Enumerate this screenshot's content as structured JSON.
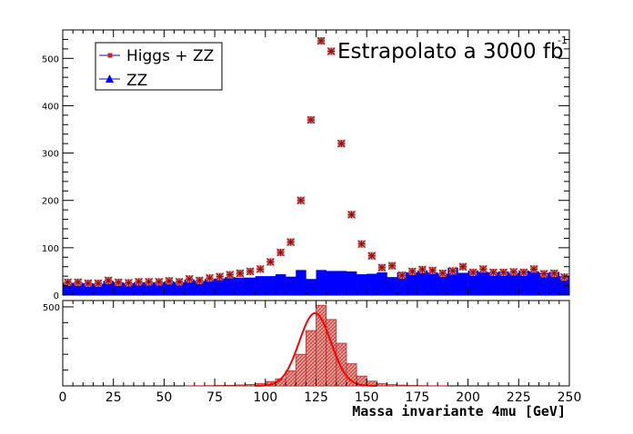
{
  "chart_data": [
    {
      "type": "bar",
      "panel": "top",
      "title": "",
      "annotation": {
        "text": "Estrapolato a 3000 fb",
        "superscript": "-1"
      },
      "xlabel": "",
      "ylabel": "",
      "xlim": [
        0,
        250
      ],
      "ylim": [
        0,
        560
      ],
      "bin_width": 5,
      "y_ticks": [
        0,
        100,
        200,
        300,
        400,
        500
      ],
      "legend": {
        "placement": "top-left",
        "entries": [
          {
            "label": "Higgs + ZZ",
            "marker": "square",
            "color": "#d61e1e"
          },
          {
            "label": "ZZ",
            "marker": "triangle",
            "color": "#0000ff"
          }
        ]
      },
      "series": [
        {
          "name": "ZZ",
          "style": "filled-histogram",
          "color": "#0000ff",
          "x": [
            2.5,
            7.5,
            12.5,
            17.5,
            22.5,
            27.5,
            32.5,
            37.5,
            42.5,
            47.5,
            52.5,
            57.5,
            62.5,
            67.5,
            72.5,
            77.5,
            82.5,
            87.5,
            92.5,
            97.5,
            102.5,
            107.5,
            112.5,
            117.5,
            122.5,
            127.5,
            132.5,
            137.5,
            142.5,
            147.5,
            152.5,
            157.5,
            162.5,
            167.5,
            172.5,
            177.5,
            182.5,
            187.5,
            192.5,
            197.5,
            202.5,
            207.5,
            212.5,
            217.5,
            222.5,
            227.5,
            232.5,
            237.5,
            242.5,
            247.5
          ],
          "values": [
            26,
            26,
            25,
            24,
            30,
            27,
            25,
            27,
            27,
            27,
            29,
            27,
            33,
            30,
            34,
            35,
            38,
            37,
            37,
            40,
            40,
            44,
            39,
            53,
            34,
            53,
            51,
            51,
            50,
            44,
            45,
            48,
            38,
            48,
            48,
            52,
            48,
            45,
            58,
            47,
            52,
            49,
            48,
            50,
            47,
            52,
            50,
            47,
            49,
            40
          ]
        },
        {
          "name": "Higgs + ZZ",
          "style": "markers",
          "color": "#d61e1e",
          "x": [
            2.5,
            7.5,
            12.5,
            17.5,
            22.5,
            27.5,
            32.5,
            37.5,
            42.5,
            47.5,
            52.5,
            57.5,
            62.5,
            67.5,
            72.5,
            77.5,
            82.5,
            87.5,
            92.5,
            97.5,
            102.5,
            107.5,
            112.5,
            117.5,
            122.5,
            127.5,
            132.5,
            137.5,
            142.5,
            147.5,
            152.5,
            157.5,
            162.5,
            167.5,
            172.5,
            177.5,
            182.5,
            187.5,
            192.5,
            197.5,
            202.5,
            207.5,
            212.5,
            217.5,
            222.5,
            227.5,
            232.5,
            237.5,
            242.5,
            247.5
          ],
          "values": [
            27,
            27,
            25,
            25,
            31,
            27,
            26,
            28,
            28,
            28,
            30,
            28,
            34,
            31,
            36,
            39,
            43,
            46,
            50,
            55,
            70,
            90,
            112,
            200,
            370,
            537,
            515,
            320,
            170,
            108,
            83,
            58,
            62,
            42,
            50,
            54,
            52,
            46,
            51,
            60,
            48,
            55,
            48,
            48,
            49,
            48,
            55,
            45,
            46,
            38
          ]
        }
      ]
    },
    {
      "type": "bar",
      "panel": "bottom",
      "title": "",
      "xlabel": "Massa invariante 4mu [GeV]",
      "ylabel": "",
      "xlim": [
        0,
        250
      ],
      "ylim": [
        0,
        540
      ],
      "bin_width": 5,
      "x_ticks": [
        0,
        25,
        50,
        75,
        100,
        125,
        150,
        175,
        200,
        225,
        250
      ],
      "y_ticks": [
        500
      ],
      "series": [
        {
          "name": "",
          "style": "hatched-histogram",
          "color": "#c83232",
          "x": [
            62.5,
            67.5,
            72.5,
            77.5,
            82.5,
            87.5,
            92.5,
            97.5,
            102.5,
            107.5,
            112.5,
            117.5,
            122.5,
            127.5,
            132.5,
            137.5,
            142.5,
            147.5,
            152.5,
            157.5,
            162.5,
            167.5,
            172.5,
            177.5,
            182.5,
            187.5
          ],
          "values": [
            1,
            1,
            2,
            3,
            4,
            6,
            9,
            14,
            28,
            45,
            95,
            200,
            350,
            510,
            420,
            270,
            140,
            62,
            30,
            14,
            8,
            5,
            3,
            2,
            1,
            1
          ]
        },
        {
          "name": "",
          "style": "fit-curve",
          "color": "#ff0000",
          "function": "gaussian",
          "mean": 124.5,
          "sigma": 7.8,
          "amplitude": 460,
          "range": [
            95,
            155
          ]
        }
      ]
    }
  ]
}
